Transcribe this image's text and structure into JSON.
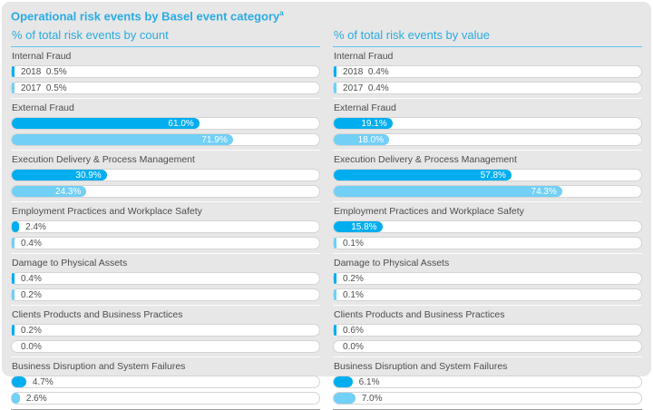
{
  "title": "Operational risk events by Basel event category",
  "title_footnote": "a",
  "colors": {
    "accent": "#29ABE2",
    "underline": "#63C5EE",
    "bar_2018": "#00AEEF",
    "bar_2017": "#72CFF5",
    "card_bg": "#E7E7E7",
    "track_bg": "#FFFFFF",
    "track_border": "#D4D4D4",
    "label_dark": "#4D4D4D",
    "divider": "#9C9C9C"
  },
  "legend_years": [
    "2018",
    "2017"
  ],
  "chart_data": [
    {
      "type": "bar",
      "title": "% of total risk events by count",
      "orientation": "horizontal",
      "unit": "%",
      "xlim": [
        0,
        100
      ],
      "grid": false,
      "legend_position": "inline-first-category",
      "categories": [
        "Internal Fraud",
        "External Fraud",
        "Execution Delivery & Process Management",
        "Employment Practices and Workplace Safety",
        "Damage to Physical Assets",
        "Clients Products and Business Practices",
        "Business Disruption and System Failures"
      ],
      "series": [
        {
          "name": "2018",
          "values": [
            0.5,
            61.0,
            30.9,
            2.4,
            0.4,
            0.2,
            4.7
          ]
        },
        {
          "name": "2017",
          "values": [
            0.5,
            71.9,
            24.3,
            0.4,
            0.2,
            0.0,
            2.6
          ]
        }
      ]
    },
    {
      "type": "bar",
      "title": "% of total risk events by value",
      "orientation": "horizontal",
      "unit": "%",
      "xlim": [
        0,
        100
      ],
      "grid": false,
      "legend_position": "inline-first-category",
      "categories": [
        "Internal Fraud",
        "External Fraud",
        "Execution Delivery & Process Management",
        "Employment Practices and Workplace Safety",
        "Damage to Physical Assets",
        "Clients Products and Business Practices",
        "Business Disruption and System Failures"
      ],
      "series": [
        {
          "name": "2018",
          "values": [
            0.4,
            19.1,
            57.8,
            15.8,
            0.2,
            0.6,
            6.1
          ]
        },
        {
          "name": "2017",
          "values": [
            0.4,
            18.0,
            74.3,
            0.1,
            0.1,
            0.0,
            7.0
          ]
        }
      ]
    }
  ]
}
